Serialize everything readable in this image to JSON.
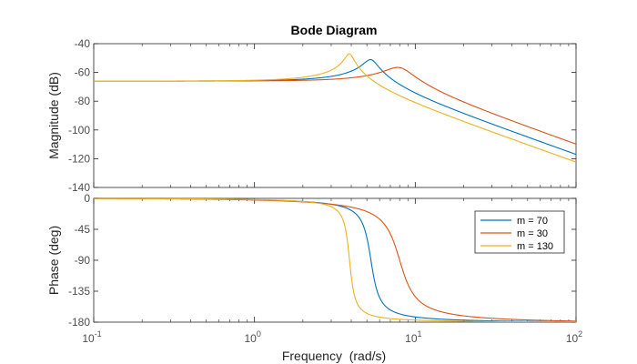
{
  "chart_data": {
    "type": "line",
    "title": "Bode Diagram",
    "xlabel": "Frequency  (rad/s)",
    "x_scale": "log",
    "xlim": [
      0.1,
      100
    ],
    "x_ticks": [
      {
        "value": 0.1,
        "base": "10",
        "exp": "-1"
      },
      {
        "value": 1,
        "base": "10",
        "exp": "0"
      },
      {
        "value": 10,
        "base": "10",
        "exp": "1"
      },
      {
        "value": 100,
        "base": "10",
        "exp": "2"
      }
    ],
    "grid": false,
    "legend_position": "top-right, lower panel",
    "series": [
      {
        "name": "m = 70",
        "color": "#0072BD",
        "wn": 5.3,
        "zeta": 0.09,
        "gain_db": -66
      },
      {
        "name": "m = 30",
        "color": "#D95319",
        "wn": 8.0,
        "zeta": 0.17,
        "gain_db": -66
      },
      {
        "name": "m = 130",
        "color": "#EDB120",
        "wn": 3.9,
        "zeta": 0.057,
        "gain_db": -66
      }
    ],
    "panels": [
      {
        "id": "magnitude",
        "ylabel": "Magnitude (dB)",
        "ylim": [
          -140,
          -40
        ],
        "yticks": [
          -40,
          -60,
          -80,
          -100,
          -120,
          -140
        ],
        "samples": [
          {
            "series": "m = 70",
            "x": [
              0.1,
              1,
              3,
              5.3,
              10,
              100
            ],
            "y": [
              -66,
              -65.8,
              -63,
              -54,
              -72,
              -116
            ]
          },
          {
            "series": "m = 30",
            "x": [
              0.1,
              1,
              4,
              8.0,
              15,
              100
            ],
            "y": [
              -66,
              -65.9,
              -64,
              -58,
              -73,
              -109
            ]
          },
          {
            "series": "m = 130",
            "x": [
              0.1,
              1,
              3,
              3.9,
              10,
              100
            ],
            "y": [
              -66,
              -65.7,
              -60,
              -52,
              -82,
              -121
            ]
          }
        ]
      },
      {
        "id": "phase",
        "ylabel": "Phase (deg)",
        "ylim": [
          -180,
          0
        ],
        "yticks": [
          0,
          -45,
          -90,
          -135,
          -180
        ],
        "samples": [
          {
            "series": "m = 70",
            "x": [
              0.1,
              1,
              5.3,
              10,
              100
            ],
            "y": [
              0,
              -1,
              -90,
              -174,
              -180
            ]
          },
          {
            "series": "m = 30",
            "x": [
              0.1,
              1,
              8.0,
              20,
              100
            ],
            "y": [
              0,
              -2,
              -90,
              -172,
              -179
            ]
          },
          {
            "series": "m = 130",
            "x": [
              0.1,
              1,
              3.9,
              8,
              100
            ],
            "y": [
              0,
              -1,
              -90,
              -176,
              -180
            ]
          }
        ]
      }
    ]
  }
}
